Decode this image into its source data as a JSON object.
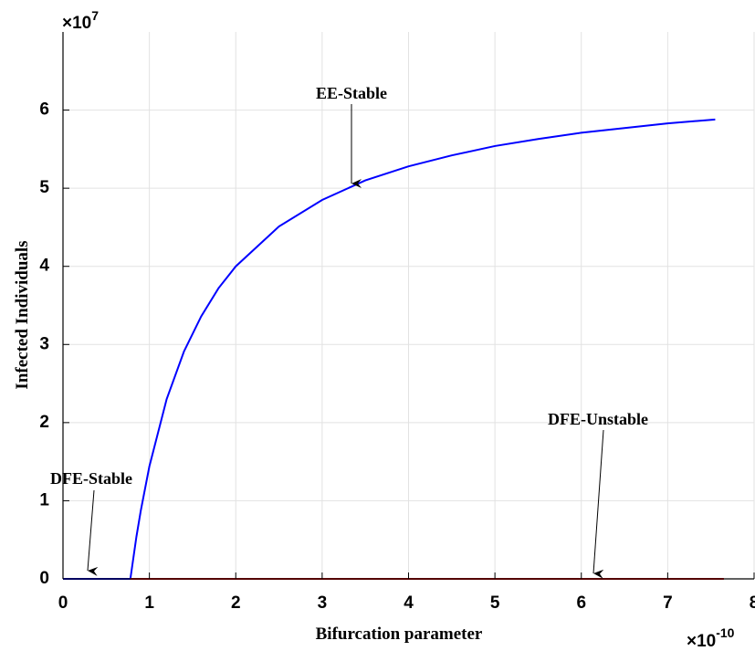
{
  "chart_data": {
    "type": "line",
    "xlabel": "Bifurcation parameter",
    "ylabel": "Infected Individuals",
    "x_scale_label": {
      "base": "×10",
      "exponent": "-10"
    },
    "y_scale_label": {
      "base": "×10",
      "exponent": "7"
    },
    "annotations": [
      "EE-Stable",
      "DFE-Unstable",
      "DFE-Stable"
    ],
    "series": [
      {
        "color": "#0000ff",
        "x": [
          0,
          0.78,
          0.85,
          0.9,
          1,
          1.2,
          1.4,
          1.6,
          1.8,
          2,
          2.5,
          3,
          3.5,
          4,
          4.5,
          5,
          5.5,
          6,
          6.5,
          7,
          7.55
        ],
        "values": [
          0,
          0,
          0.54,
          0.87,
          1.44,
          2.3,
          2.91,
          3.36,
          3.72,
          4.0,
          4.51,
          4.85,
          5.1,
          5.28,
          5.42,
          5.54,
          5.63,
          5.71,
          5.77,
          5.83,
          5.88
        ]
      },
      {
        "color": "#e00000",
        "x": [
          0.78,
          7.65
        ],
        "values": [
          0,
          0
        ]
      }
    ],
    "xlim": [
      0,
      8
    ],
    "xticks": [
      0,
      1,
      2,
      3,
      4,
      5,
      6,
      7,
      8
    ],
    "ylim": [
      0,
      7
    ],
    "yticks": [
      0,
      1,
      2,
      3,
      4,
      5,
      6
    ],
    "grid": true
  }
}
